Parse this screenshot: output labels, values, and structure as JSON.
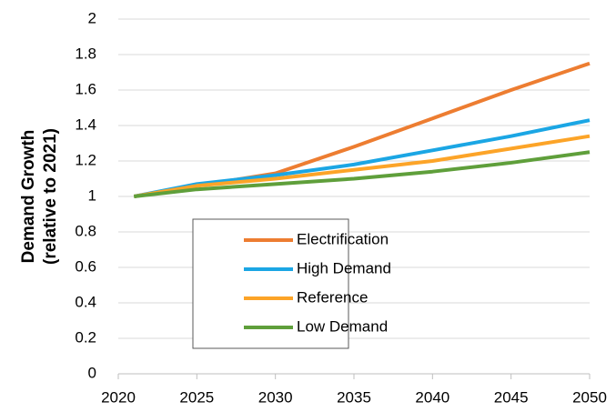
{
  "chart_data": {
    "type": "line",
    "ylabel": [
      "Demand Growth",
      "(relative to 2021)"
    ],
    "x": [
      2021,
      2025,
      2030,
      2035,
      2040,
      2045,
      2050
    ],
    "series": [
      {
        "name": "Electrification",
        "color": "#ed7d31",
        "values": [
          1.0,
          1.06,
          1.13,
          1.28,
          1.44,
          1.6,
          1.75
        ]
      },
      {
        "name": "High Demand",
        "color": "#1ba6e4",
        "values": [
          1.0,
          1.07,
          1.12,
          1.18,
          1.26,
          1.34,
          1.43
        ]
      },
      {
        "name": "Reference",
        "color": "#fca428",
        "values": [
          1.0,
          1.06,
          1.1,
          1.15,
          1.2,
          1.27,
          1.34
        ]
      },
      {
        "name": "Low Demand",
        "color": "#5f9f3b",
        "values": [
          1.0,
          1.04,
          1.07,
          1.1,
          1.14,
          1.19,
          1.25
        ]
      }
    ],
    "xlim": [
      2020,
      2050
    ],
    "xticks": [
      2020,
      2025,
      2030,
      2035,
      2040,
      2045,
      2050
    ],
    "ylim": [
      0,
      2
    ],
    "yticks": [
      0,
      0.2,
      0.4,
      0.6,
      0.8,
      1,
      1.2,
      1.4,
      1.6,
      1.8,
      2
    ],
    "grid": true,
    "legend": "center"
  }
}
